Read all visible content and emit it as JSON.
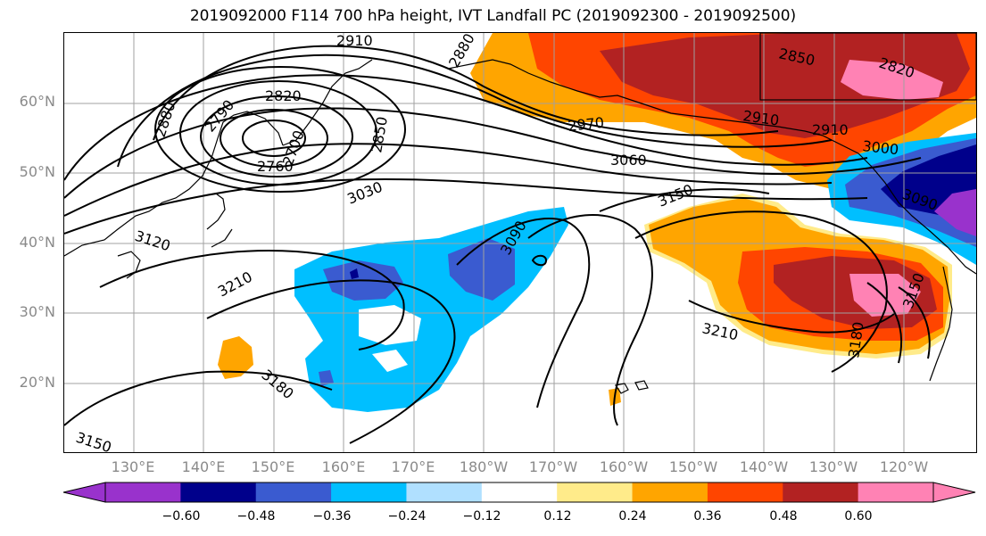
{
  "title": "2019092000 F114 700 hPa height, IVT Landfall PC (2019092300 - 2019092500)",
  "latitude_labels": [
    "60°N",
    "50°N",
    "40°N",
    "30°N",
    "20°N"
  ],
  "longitude_labels": [
    "130°E",
    "140°E",
    "150°E",
    "160°E",
    "170°E",
    "180°W",
    "170°W",
    "160°W",
    "150°W",
    "140°W",
    "130°W",
    "120°W"
  ],
  "contour_labels": [
    "2910",
    "2880",
    "2820",
    "2790",
    "2880",
    "2850",
    "2760",
    "2700",
    "2970",
    "2910",
    "2850",
    "2820",
    "3060",
    "3000",
    "3030",
    "3090",
    "3150",
    "3120",
    "3210",
    "3180",
    "3210",
    "3180",
    "3150",
    "3150",
    "2910",
    "3090"
  ],
  "colorbar": {
    "ticks": [
      "−0.60",
      "−0.48",
      "−0.36",
      "−0.24",
      "−0.12",
      "0.12",
      "0.24",
      "0.36",
      "0.48",
      "0.60"
    ],
    "colors": [
      "#9932cc",
      "#00008b",
      "#3a5bd0",
      "#00bfff",
      "#b0e0ff",
      "#ffffff",
      "#ffeb8a",
      "#ffa500",
      "#ff4500",
      "#b22222",
      "#ff82b4"
    ]
  },
  "palette": {
    "land_outline": "#000000",
    "grid": "#a0a0a0",
    "contour": "#000000"
  }
}
